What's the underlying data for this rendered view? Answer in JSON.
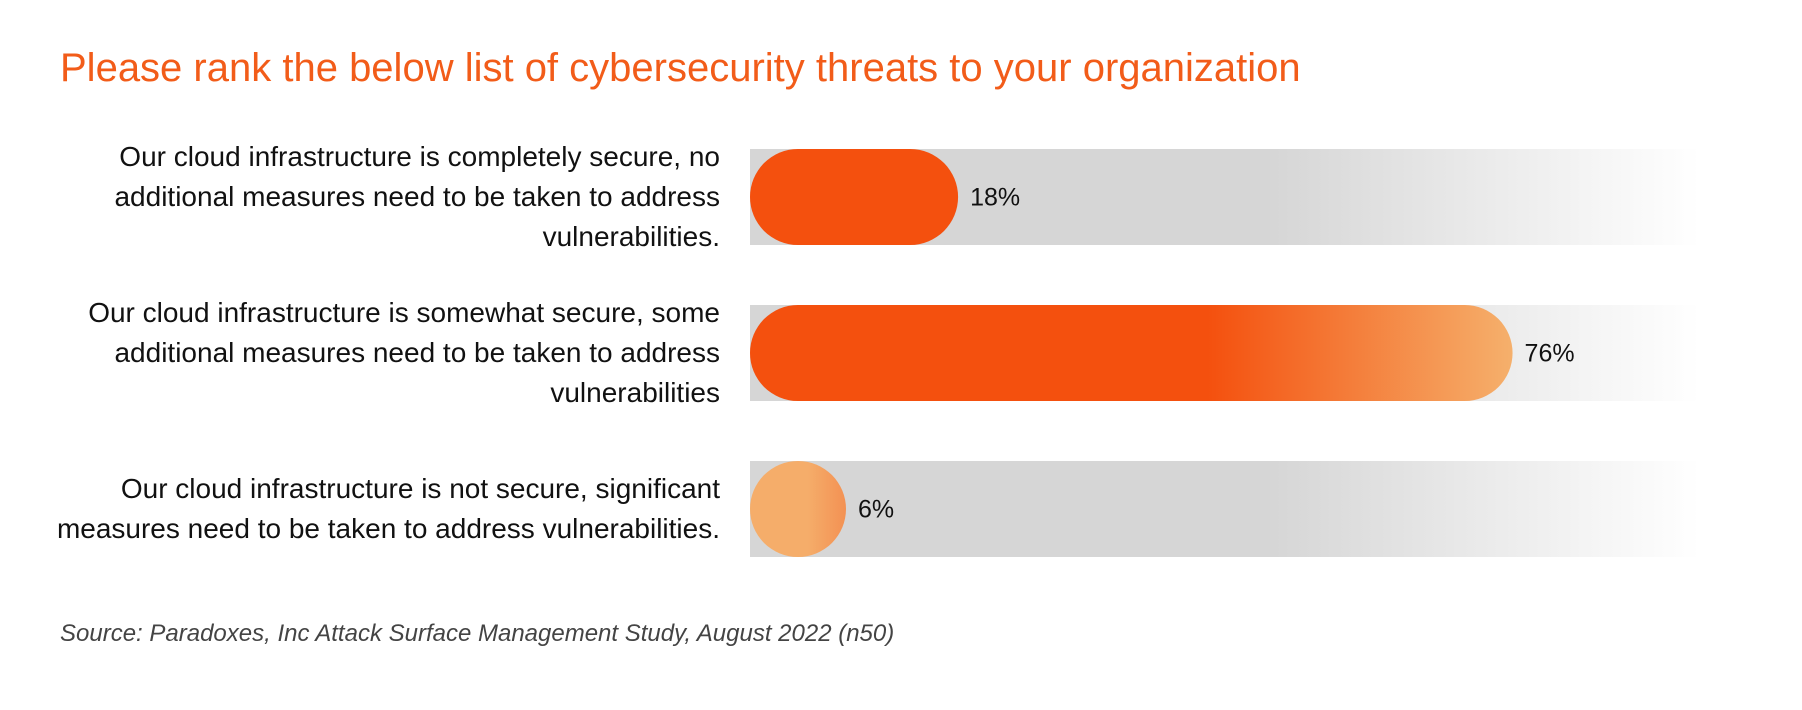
{
  "chart_data": {
    "type": "bar",
    "orientation": "horizontal",
    "title": "Please rank the below list of cybersecurity threats to your organization",
    "categories": [
      "Our cloud infrastructure is completely secure, no additional measures need to be taken to address vulnerabilities.",
      "Our cloud infrastructure is somewhat secure, some additional measures need to be taken to address vulnerabilities",
      "Our cloud infrastructure is not secure, significant measures need to be taken to address vulnerabilities."
    ],
    "values": [
      18,
      76,
      6
    ],
    "value_labels": [
      "18%",
      "76%",
      "6%"
    ],
    "bar_colors": [
      [
        "#f4500e",
        "#f4500e"
      ],
      [
        "#f4500e",
        "#f5b06c"
      ],
      [
        "#f5ad6a",
        "#f39153"
      ]
    ],
    "track_color": "#d6d6d6",
    "title_color": "#f25c19",
    "source": "Source: Paradoxes, Inc Attack Surface Management Study, August 2022 (n50)"
  }
}
